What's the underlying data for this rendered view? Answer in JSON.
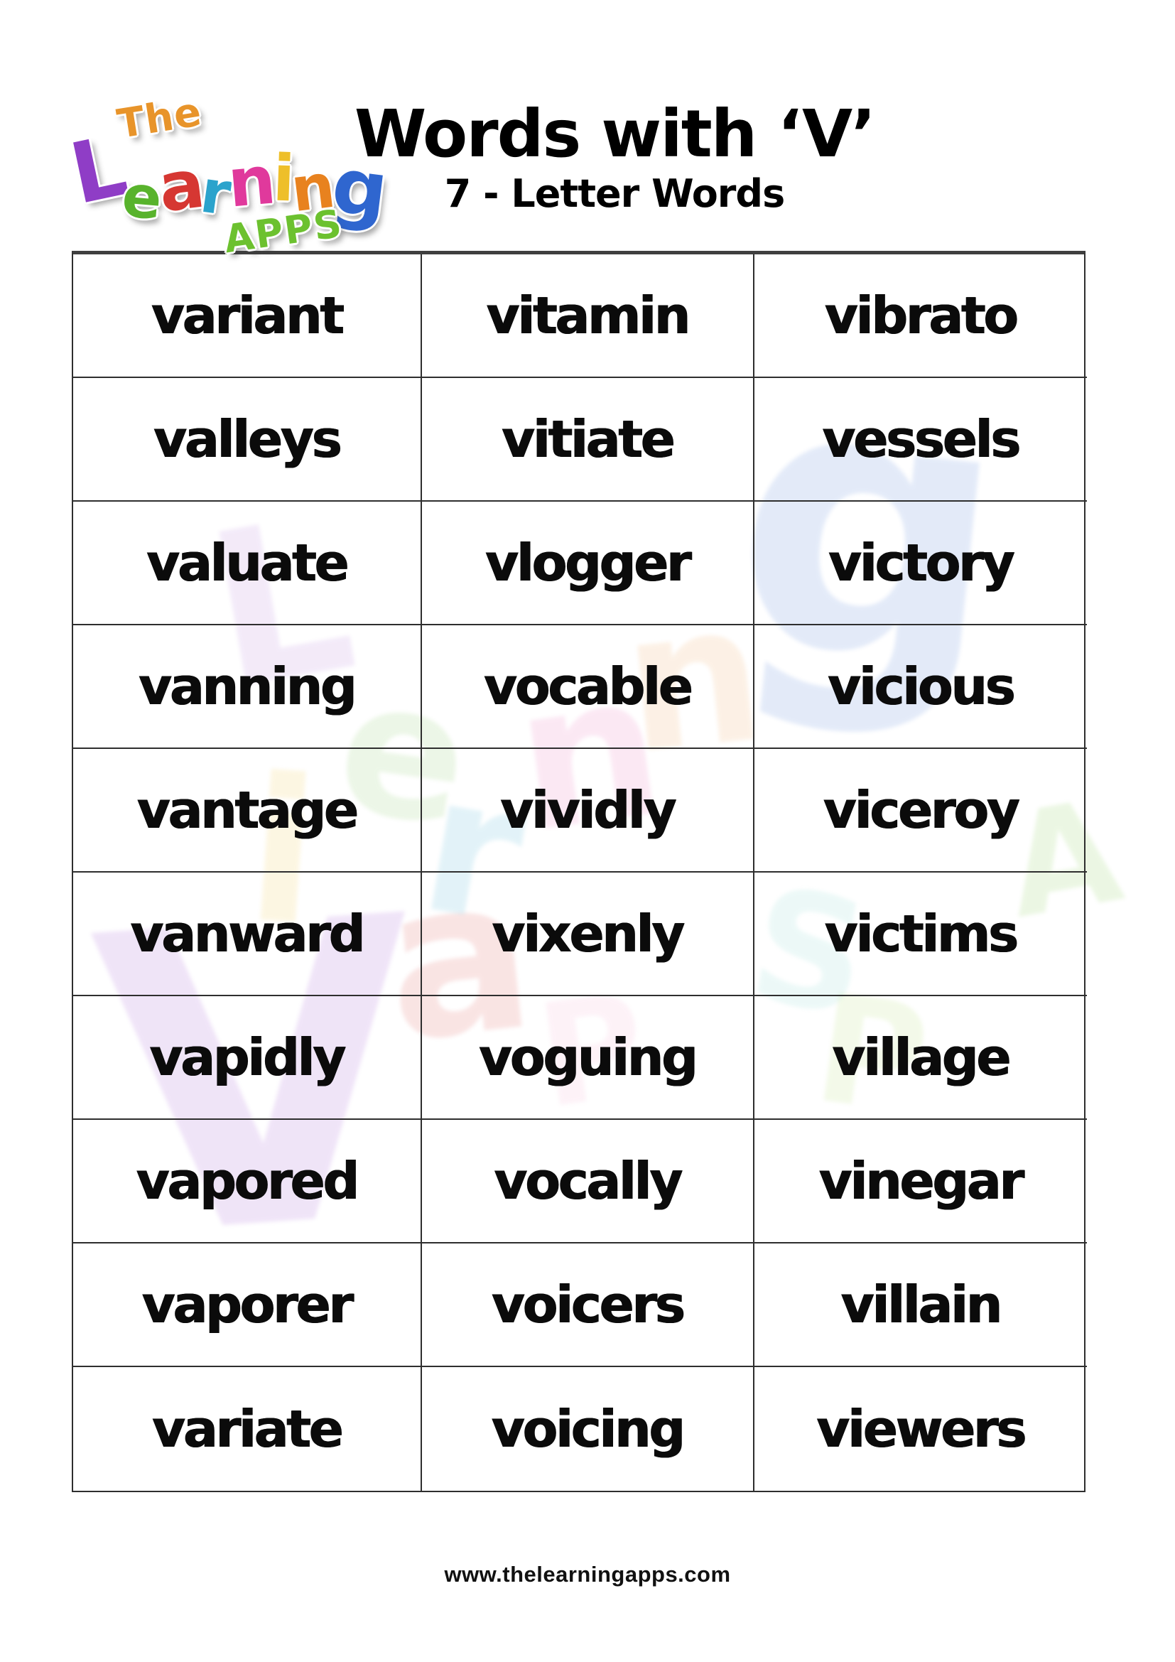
{
  "header": {
    "title": "Words with ‘V’",
    "subtitle": "7 - Letter Words"
  },
  "logo": {
    "the": "The",
    "learning_letters": [
      "L",
      "e",
      "a",
      "r",
      "n",
      "i",
      "n",
      "g"
    ],
    "letter_colors": [
      "#8f3dc6",
      "#58b32c",
      "#d63732",
      "#2ba3cc",
      "#e0399c",
      "#eebf2a",
      "#e8821f",
      "#2f66cf"
    ],
    "apps": "APPS",
    "the_color": "#e8942a",
    "apps_color": "#6cc12f"
  },
  "table": {
    "rows": [
      [
        "variant",
        "vitamin",
        "vibrato"
      ],
      [
        "valleys",
        "vitiate",
        "vessels"
      ],
      [
        "valuate",
        "vlogger",
        "victory"
      ],
      [
        "vanning",
        "vocable",
        "vicious"
      ],
      [
        "vantage",
        "vividly",
        "viceroy"
      ],
      [
        "vanward",
        "vixenly",
        "victims"
      ],
      [
        "vapidly",
        "voguing",
        "village"
      ],
      [
        "vapored",
        "vocally",
        "vinegar"
      ],
      [
        "vaporer",
        "voicers",
        "villain"
      ],
      [
        "variate",
        "voicing",
        "viewers"
      ]
    ]
  },
  "watermark": {
    "glyphs": [
      {
        "ch": "V",
        "color": "#9b4fd0"
      },
      {
        "ch": "L",
        "color": "#8f3dc6"
      },
      {
        "ch": "e",
        "color": "#58b32c"
      },
      {
        "ch": "a",
        "color": "#d63732"
      },
      {
        "ch": "r",
        "color": "#2ba3cc"
      },
      {
        "ch": "n",
        "color": "#e0399c"
      },
      {
        "ch": "i",
        "color": "#eebf2a"
      },
      {
        "ch": "n",
        "color": "#e8821f"
      },
      {
        "ch": "g",
        "color": "#2f66cf"
      },
      {
        "ch": "A",
        "color": "#6cc12f"
      },
      {
        "ch": "P",
        "color": "#9fd44f"
      },
      {
        "ch": "P",
        "color": "#f2a0c8"
      },
      {
        "ch": "S",
        "color": "#7fd4cc"
      }
    ]
  },
  "footer": {
    "url": "www.thelearningapps.com"
  },
  "colors": {
    "word_text": "#0b0b0b",
    "grid_border": "#2e2e2e",
    "title_text": "#000000",
    "page_background": "#ffffff"
  }
}
